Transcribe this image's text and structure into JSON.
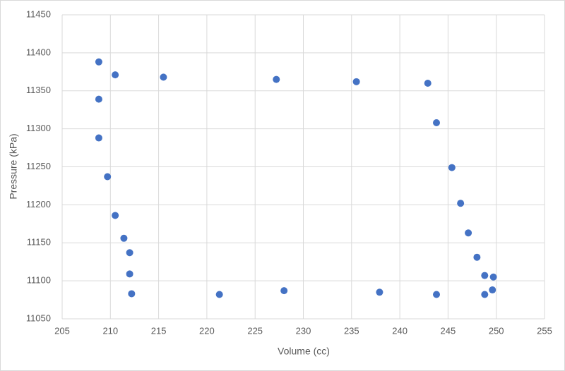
{
  "chart_data": {
    "type": "scatter",
    "x_label": "Volume (cc)",
    "y_label": "Pressure (kPa)",
    "color": "#4472c4",
    "grid": true,
    "x": [
      208.8,
      210.5,
      215.5,
      227.2,
      235.5,
      242.9,
      243.8,
      245.4,
      246.3,
      247.1,
      248.0,
      248.8,
      249.7,
      249.6,
      248.8,
      243.8,
      237.9,
      228.0,
      221.3,
      212.2,
      212.0,
      212.0,
      211.4,
      210.5,
      209.7,
      208.8,
      208.8
    ],
    "values": [
      11388,
      11371,
      11368,
      11365,
      11362,
      11360,
      11308,
      11249,
      11202,
      11163,
      11131,
      11107,
      11105,
      11088,
      11082,
      11082,
      11085,
      11087,
      11082,
      11083,
      11109,
      11137,
      11156,
      11186,
      11237,
      11288,
      11339
    ],
    "xlim": [
      205,
      255
    ],
    "xticks": [
      205,
      210,
      215,
      220,
      225,
      230,
      235,
      240,
      245,
      250,
      255
    ],
    "ylim": [
      11050,
      11450
    ],
    "yticks": [
      11050,
      11100,
      11150,
      11200,
      11250,
      11300,
      11350,
      11400,
      11450
    ]
  }
}
